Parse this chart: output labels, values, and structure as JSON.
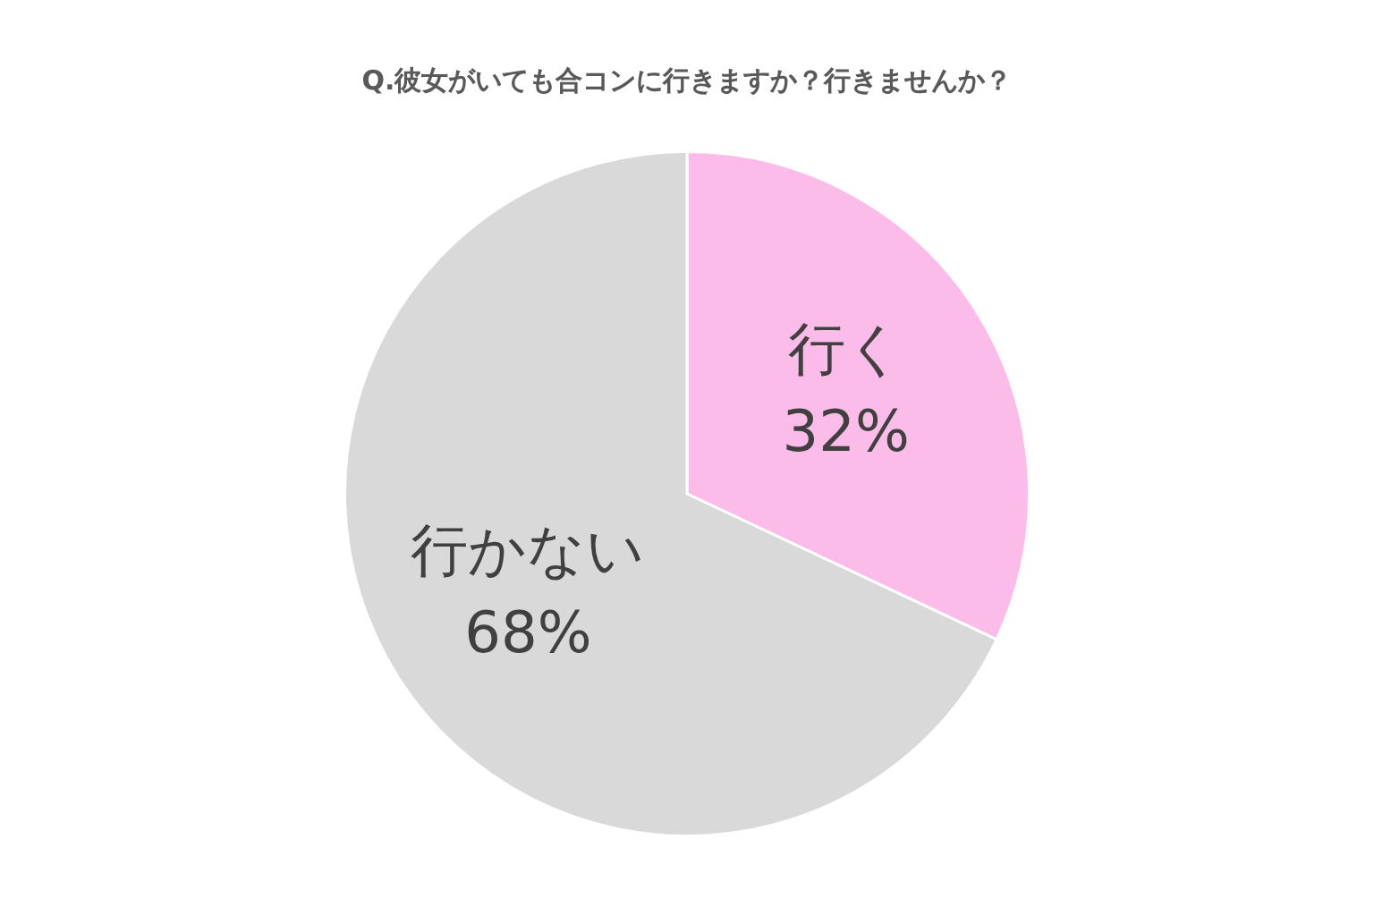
{
  "chart_data": {
    "type": "pie",
    "title": "Q.彼女がいても合コンに行きますか？行きませんか？",
    "categories": [
      "行く",
      "行かない"
    ],
    "values": [
      32,
      68
    ],
    "value_labels": [
      "32%",
      "68%"
    ],
    "colors": [
      "#fcbcea",
      "#d9d9d9"
    ],
    "legend": false
  }
}
